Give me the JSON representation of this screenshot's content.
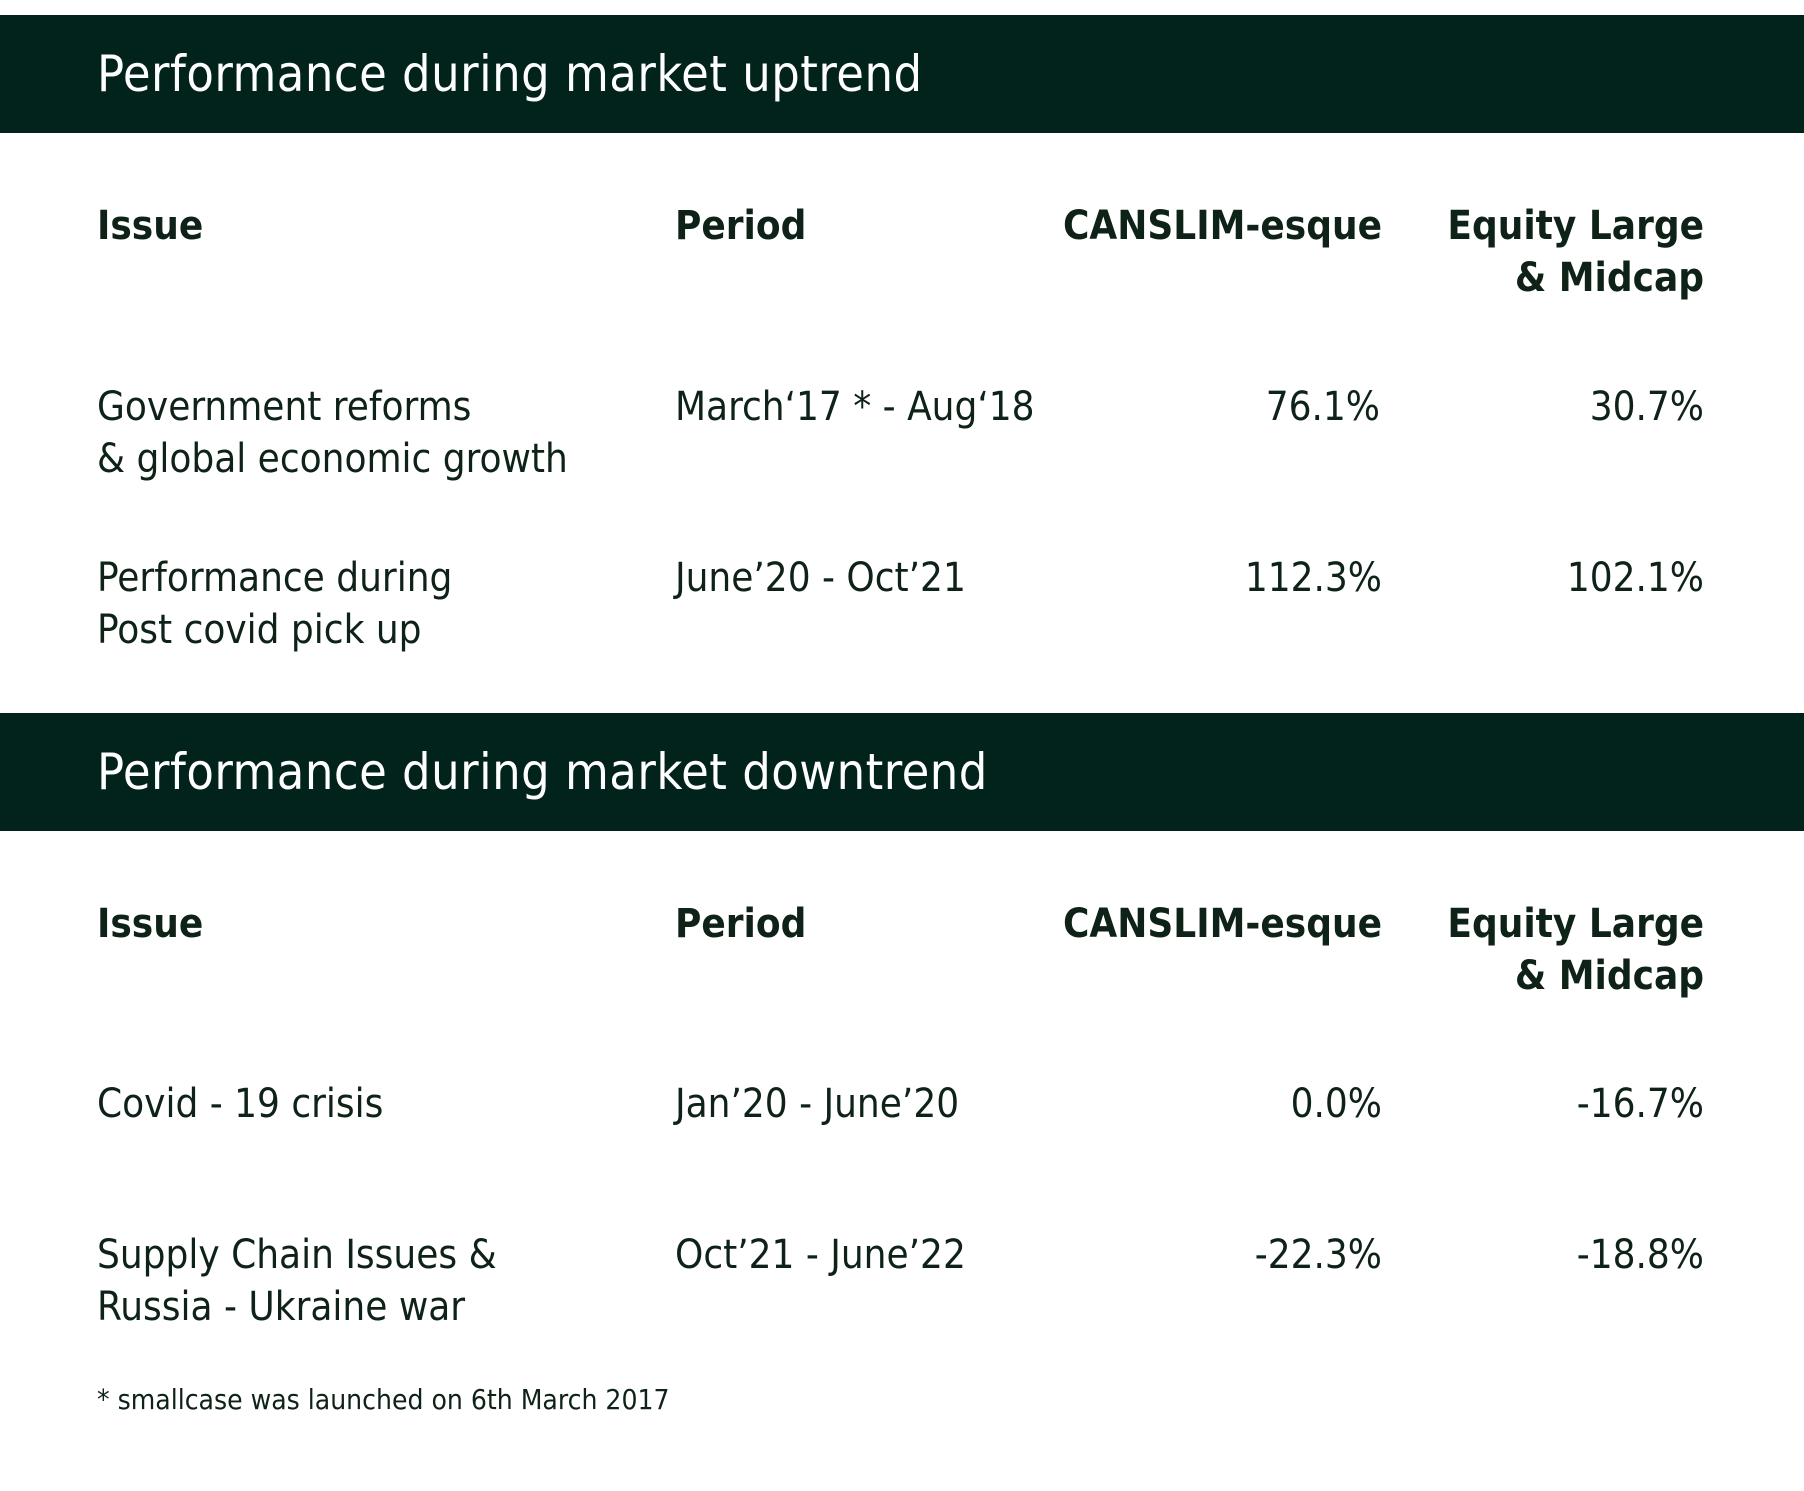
{
  "sections": [
    {
      "title": "Performance during market uptrend",
      "headers": {
        "issue": "Issue",
        "period": "Period",
        "canslim": "CANSLIM-esque",
        "equity_line1": "Equity Large",
        "equity_line2": "& Midcap"
      },
      "rows": [
        {
          "issue_line1": "Government reforms",
          "issue_line2": "& global economic growth",
          "period": "March‘17 * - Aug‘18",
          "canslim": "76.1%",
          "equity": "30.7%"
        },
        {
          "issue_line1": "Performance during",
          "issue_line2": "Post covid pick up",
          "period": "June’20 - Oct’21",
          "canslim": "112.3%",
          "equity": "102.1%"
        }
      ]
    },
    {
      "title": "Performance during market downtrend",
      "headers": {
        "issue": "Issue",
        "period": "Period",
        "canslim": "CANSLIM-esque",
        "equity_line1": "Equity Large",
        "equity_line2": "& Midcap"
      },
      "rows": [
        {
          "issue_line1": "Covid - 19 crisis",
          "issue_line2": "",
          "period": "Jan’20 - June’20",
          "canslim": "0.0%",
          "equity": "-16.7%"
        },
        {
          "issue_line1": "Supply Chain Issues &",
          "issue_line2": "Russia - Ukraine war",
          "period": "Oct’21 - June’22",
          "canslim": "-22.3%",
          "equity": "-18.8%"
        }
      ]
    }
  ],
  "footnote": "* smallcase was launched on 6th March 2017",
  "colors": {
    "band": "#01231b",
    "text": "#0f2218",
    "band_text": "#ffffff"
  }
}
